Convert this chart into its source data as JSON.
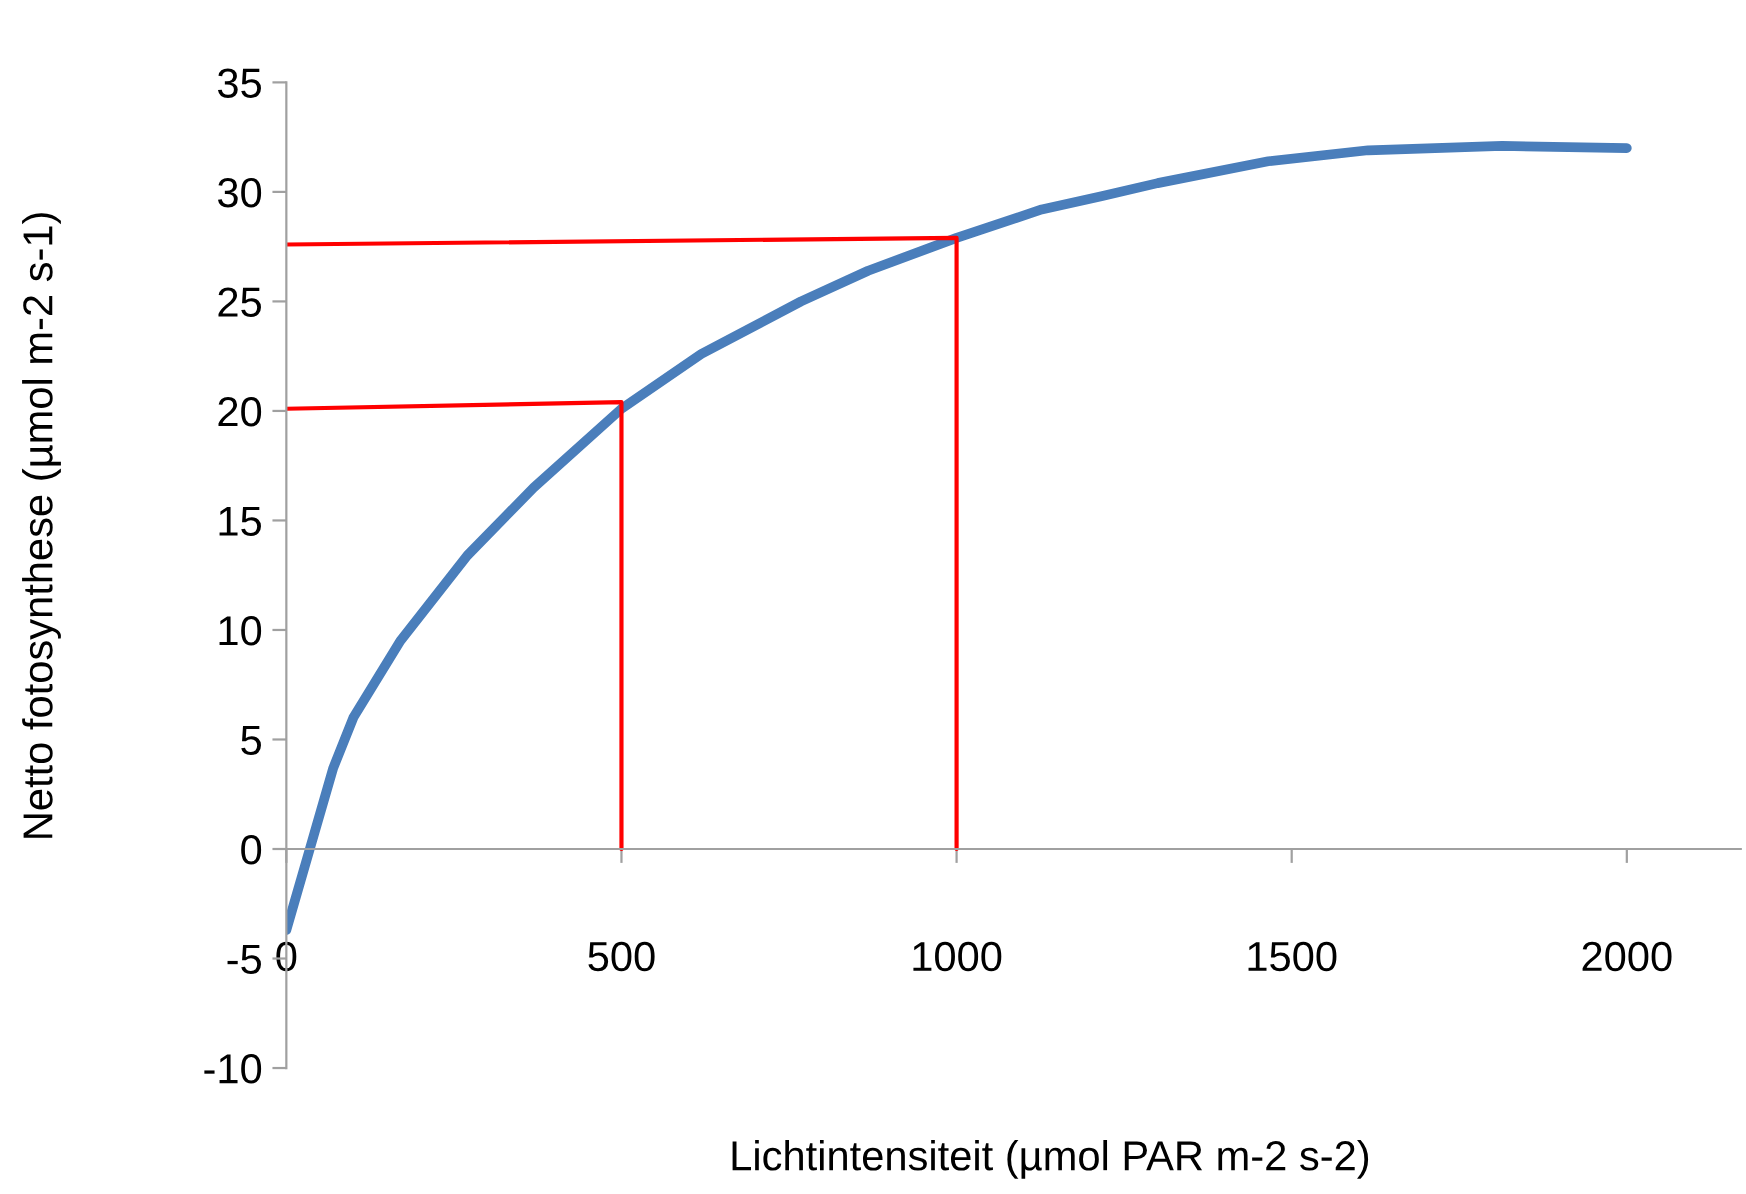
{
  "chart_data": {
    "type": "line",
    "xlabel": "Lichtintensiteit (µmol PAR m-2 s-2)",
    "ylabel": "Netto fotosynthese (µmol m-2 s-1)",
    "series": [
      {
        "color": "#4a7ebb",
        "x": [
          0,
          35,
          70,
          100,
          170,
          270,
          369,
          500,
          619,
          768,
          868,
          1000,
          1127,
          1216,
          1300,
          1465,
          1614,
          1814,
          2000
        ],
        "values": [
          -3.7,
          0,
          3.7,
          6.0,
          9.5,
          13.4,
          16.5,
          20.1,
          22.6,
          25.0,
          26.4,
          27.9,
          29.2,
          29.8,
          30.4,
          31.4,
          31.9,
          32.1,
          32.0
        ]
      },
      {
        "color": "#ff0000",
        "x": [
          0,
          500,
          500
        ],
        "values": [
          20.1,
          20.4,
          0
        ]
      },
      {
        "color": "#ff0000",
        "x": [
          0,
          1000,
          1000
        ],
        "values": [
          27.6,
          27.9,
          0
        ]
      }
    ],
    "xlim": [
      0,
      2170
    ],
    "ylim": [
      -10,
      35
    ],
    "xticks": [
      0,
      500,
      1000,
      1500,
      2000
    ],
    "yticks": [
      -10,
      -5,
      0,
      5,
      10,
      15,
      20,
      25,
      30,
      35
    ],
    "grid": false
  }
}
